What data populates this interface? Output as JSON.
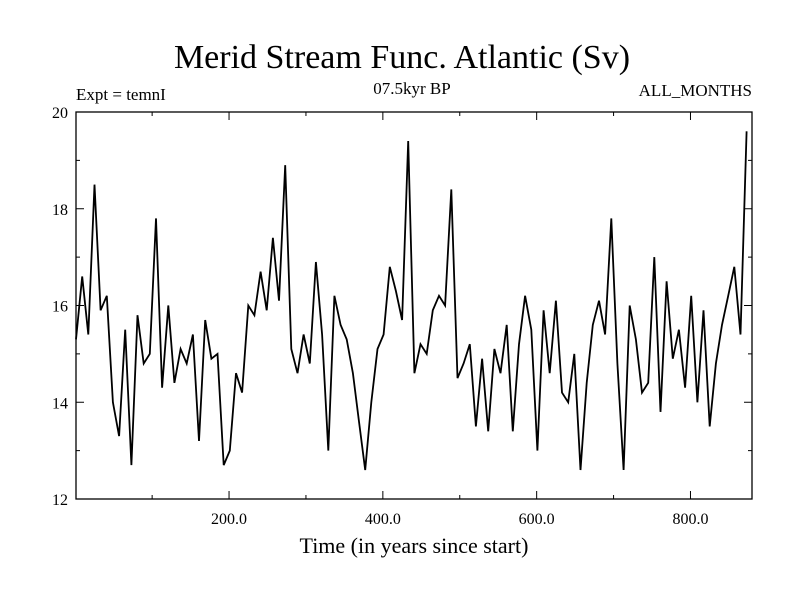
{
  "chart_data": {
    "type": "line",
    "title": "Merid Stream Func. Atlantic (Sv)",
    "subtitle_left": "Expt = temnI",
    "subtitle_center": "07.5kyr BP",
    "subtitle_right": "ALL_MONTHS",
    "xlabel": "Time (in years since start)",
    "ylabel": "",
    "xlim": [
      1,
      880
    ],
    "ylim": [
      12,
      20
    ],
    "x_ticks": [
      200,
      400,
      600,
      800
    ],
    "x_tick_labels": [
      "200.0",
      "400.0",
      "600.0",
      "800.0"
    ],
    "y_ticks": [
      12,
      14,
      16,
      18,
      20
    ],
    "y_tick_labels": [
      "12",
      "14",
      "16",
      "18",
      "20"
    ],
    "grid": false,
    "line_color": "#000000",
    "series": [
      {
        "name": "Merid Stream Func. Atlantic",
        "x_start": 1,
        "x_step": 8,
        "values": [
          15.3,
          16.6,
          15.4,
          18.5,
          15.9,
          16.2,
          14.0,
          13.3,
          15.5,
          12.7,
          15.8,
          14.8,
          15.0,
          17.8,
          14.3,
          16.0,
          14.4,
          15.1,
          14.8,
          15.4,
          13.2,
          15.7,
          14.9,
          15.0,
          12.7,
          13.0,
          14.6,
          14.2,
          16.0,
          15.8,
          16.7,
          15.9,
          17.4,
          16.1,
          18.9,
          15.1,
          14.6,
          15.4,
          14.8,
          16.9,
          15.4,
          13.0,
          16.2,
          15.6,
          15.3,
          14.6,
          13.6,
          12.6,
          14.0,
          15.1,
          15.4,
          16.8,
          16.3,
          15.7,
          19.4,
          14.6,
          15.2,
          15.0,
          15.9,
          16.2,
          16.0,
          18.4,
          14.5,
          14.8,
          15.2,
          13.5,
          14.9,
          13.4,
          15.1,
          14.6,
          15.6,
          13.4,
          15.2,
          16.2,
          15.5,
          13.0,
          15.9,
          14.6,
          16.1,
          14.2,
          14.0,
          15.0,
          12.6,
          14.4,
          15.6,
          16.1,
          15.4,
          17.8,
          14.8,
          12.6,
          16.0,
          15.3,
          14.2,
          14.4,
          17.0,
          13.8,
          16.5,
          14.9,
          15.5,
          14.3,
          16.2,
          14.0,
          15.9,
          13.5,
          14.8,
          15.6,
          16.2,
          16.8,
          15.4,
          19.6
        ]
      }
    ]
  }
}
